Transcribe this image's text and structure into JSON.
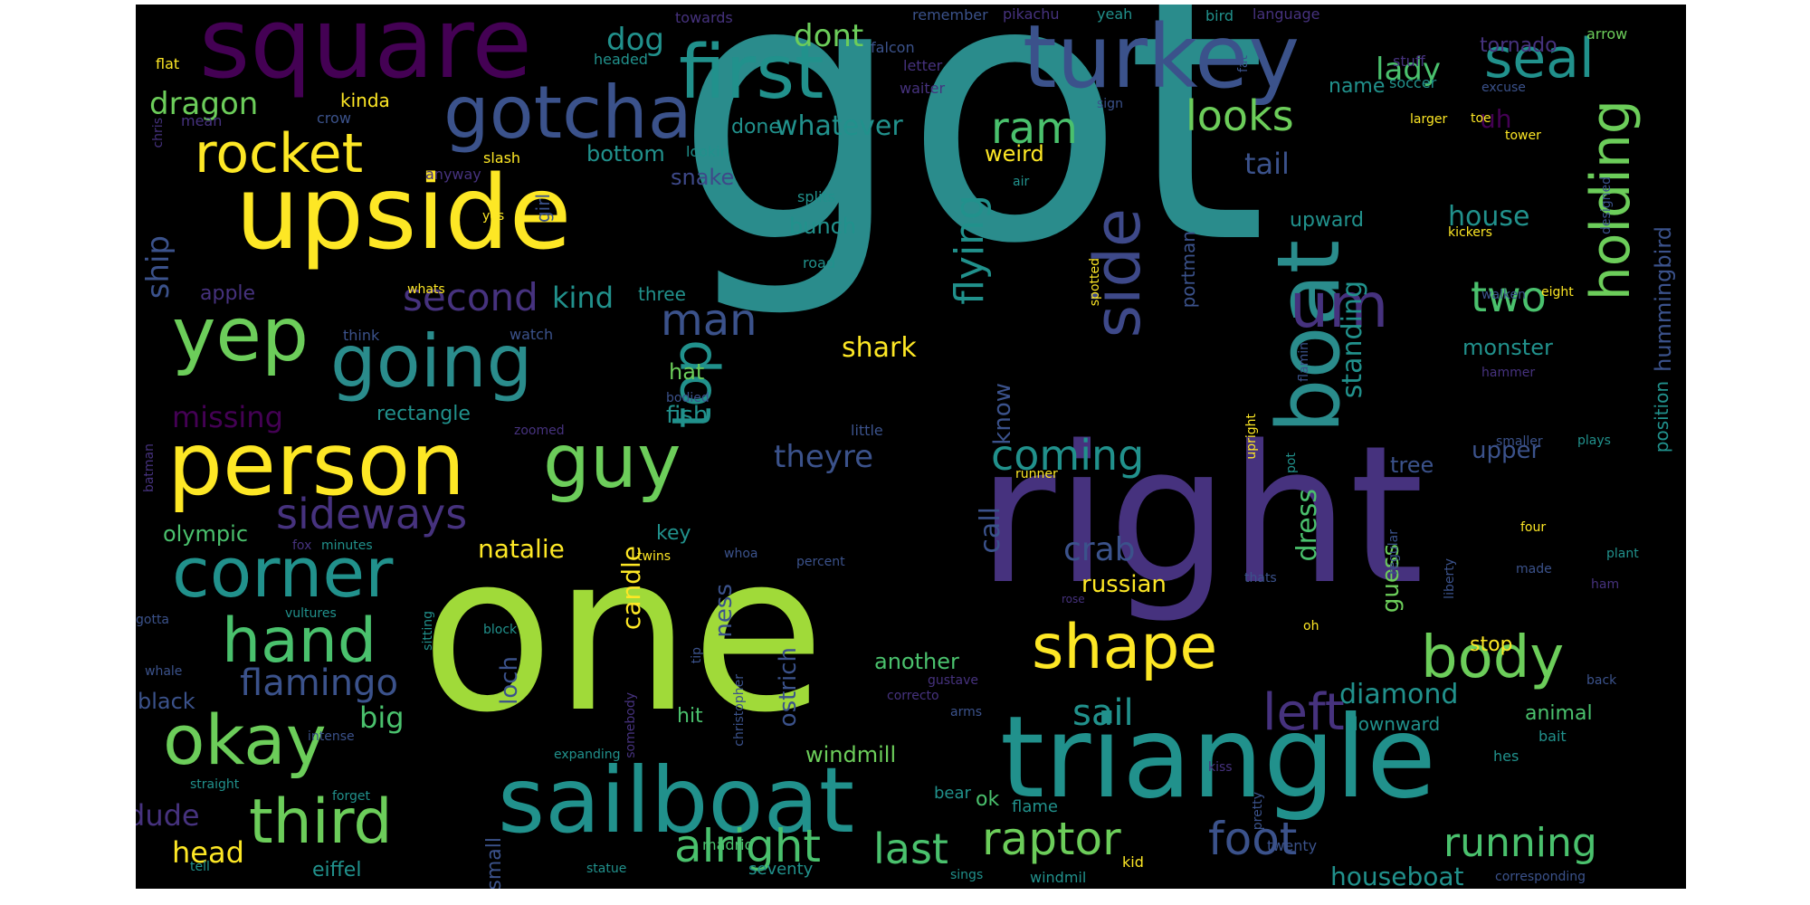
{
  "palette": {
    "c1": "#a0da39",
    "c2": "#2a8c8c",
    "c3": "#3b528b",
    "c4": "#46327e",
    "c5": "#fde725",
    "c6": "#4ac16d",
    "c7": "#21918c",
    "c8": "#3e4989",
    "c9": "#440154",
    "c10": "#6ccd5a"
  },
  "words": [
    {
      "text": "got"
    },
    {
      "text": "one"
    },
    {
      "text": "right"
    },
    {
      "text": "triangle"
    },
    {
      "text": "sailboat"
    },
    {
      "text": "upside"
    },
    {
      "text": "square"
    },
    {
      "text": "turkey"
    },
    {
      "text": "boat"
    },
    {
      "text": "person"
    },
    {
      "text": "first"
    },
    {
      "text": "gotcha"
    },
    {
      "text": "yep"
    },
    {
      "text": "going"
    },
    {
      "text": "guy"
    },
    {
      "text": "rocket"
    },
    {
      "text": "corner"
    },
    {
      "text": "okay"
    },
    {
      "text": "hand"
    },
    {
      "text": "third"
    },
    {
      "text": "shape"
    },
    {
      "text": "side"
    },
    {
      "text": "um"
    },
    {
      "text": "holding"
    },
    {
      "text": "seal"
    },
    {
      "text": "body"
    },
    {
      "text": "top"
    },
    {
      "text": "looks"
    },
    {
      "text": "man"
    },
    {
      "text": "sideways"
    },
    {
      "text": "flying"
    },
    {
      "text": "left"
    },
    {
      "text": "coming"
    },
    {
      "text": "two"
    },
    {
      "text": "ram"
    },
    {
      "text": "raptor"
    },
    {
      "text": "foot"
    },
    {
      "text": "alright"
    },
    {
      "text": "last"
    },
    {
      "text": "running"
    },
    {
      "text": "second"
    },
    {
      "text": "flamingo"
    },
    {
      "text": "sail"
    },
    {
      "text": "dragon"
    },
    {
      "text": "dog"
    },
    {
      "text": "dont"
    },
    {
      "text": "lady"
    },
    {
      "text": "ship"
    },
    {
      "text": "missing"
    },
    {
      "text": "whatever"
    },
    {
      "text": "theyre"
    },
    {
      "text": "crab"
    },
    {
      "text": "dress"
    },
    {
      "text": "house"
    },
    {
      "text": "standing"
    },
    {
      "text": "tail"
    },
    {
      "text": "shark"
    },
    {
      "text": "kind"
    },
    {
      "text": "call"
    },
    {
      "text": "know"
    },
    {
      "text": "big"
    },
    {
      "text": "dude"
    },
    {
      "text": "head"
    },
    {
      "text": "candle"
    },
    {
      "text": "diamond"
    },
    {
      "text": "houseboat"
    },
    {
      "text": "monster"
    },
    {
      "text": "natalie"
    },
    {
      "text": "russian"
    },
    {
      "text": "guess"
    },
    {
      "text": "windmill"
    },
    {
      "text": "another"
    },
    {
      "text": "loch"
    },
    {
      "text": "ness"
    },
    {
      "text": "ostrich"
    },
    {
      "text": "name"
    },
    {
      "text": "uh"
    },
    {
      "text": "hummingbird"
    },
    {
      "text": "position"
    },
    {
      "text": "upper"
    },
    {
      "text": "tree"
    },
    {
      "text": "fish"
    },
    {
      "text": "hat"
    },
    {
      "text": "bunch"
    },
    {
      "text": "snake"
    },
    {
      "text": "weird"
    },
    {
      "text": "bottom"
    },
    {
      "text": "kinda"
    },
    {
      "text": "done"
    },
    {
      "text": "rectangle"
    },
    {
      "text": "apple"
    },
    {
      "text": "olympic"
    },
    {
      "text": "black"
    },
    {
      "text": "eiffel"
    },
    {
      "text": "downward"
    },
    {
      "text": "animal"
    },
    {
      "text": "stop"
    },
    {
      "text": "upward"
    },
    {
      "text": "tornado"
    },
    {
      "text": "key"
    },
    {
      "text": "ok"
    },
    {
      "text": "hit"
    },
    {
      "text": "three"
    },
    {
      "text": "girl"
    },
    {
      "text": "small"
    },
    {
      "text": "portman"
    },
    {
      "text": "seventy"
    },
    {
      "text": "madrid"
    },
    {
      "text": "twenty"
    },
    {
      "text": "bear"
    },
    {
      "text": "flame"
    },
    {
      "text": "hes"
    },
    {
      "text": "bait"
    },
    {
      "text": "towards"
    },
    {
      "text": "remember"
    },
    {
      "text": "pikachu"
    },
    {
      "text": "yeah"
    },
    {
      "text": "bird"
    },
    {
      "text": "language"
    },
    {
      "text": "arrow"
    },
    {
      "text": "flat"
    },
    {
      "text": "headed"
    },
    {
      "text": "falcon"
    },
    {
      "text": "letter"
    },
    {
      "text": "fat"
    },
    {
      "text": "stuff"
    },
    {
      "text": "soccer"
    },
    {
      "text": "excuse"
    },
    {
      "text": "waiter"
    },
    {
      "text": "mean"
    },
    {
      "text": "crow"
    },
    {
      "text": "chris"
    },
    {
      "text": "sign"
    },
    {
      "text": "larger"
    },
    {
      "text": "toe"
    },
    {
      "text": "tower"
    },
    {
      "text": "slash"
    },
    {
      "text": "lookin"
    },
    {
      "text": "anyway"
    },
    {
      "text": "designed"
    },
    {
      "text": "air"
    },
    {
      "text": "splits"
    },
    {
      "text": "kickers"
    },
    {
      "text": "road"
    },
    {
      "text": "yes"
    },
    {
      "text": "spotted"
    },
    {
      "text": "whats"
    },
    {
      "text": "walken"
    },
    {
      "text": "eight"
    },
    {
      "text": "think"
    },
    {
      "text": "watch"
    },
    {
      "text": "flamin"
    },
    {
      "text": "hammer"
    },
    {
      "text": "bodied"
    },
    {
      "text": "zoomed"
    },
    {
      "text": "little"
    },
    {
      "text": "upright"
    },
    {
      "text": "smaller"
    },
    {
      "text": "plays"
    },
    {
      "text": "batman"
    },
    {
      "text": "runner"
    },
    {
      "text": "pot"
    },
    {
      "text": "fox"
    },
    {
      "text": "minutes"
    },
    {
      "text": "twins"
    },
    {
      "text": "whoa"
    },
    {
      "text": "percent"
    },
    {
      "text": "regular"
    },
    {
      "text": "liberty"
    },
    {
      "text": "four"
    },
    {
      "text": "plant"
    },
    {
      "text": "made"
    },
    {
      "text": "thats"
    },
    {
      "text": "ham"
    },
    {
      "text": "rose"
    },
    {
      "text": "vultures"
    },
    {
      "text": "gotta"
    },
    {
      "text": "sitting"
    },
    {
      "text": "block"
    },
    {
      "text": "oh"
    },
    {
      "text": "whale"
    },
    {
      "text": "tip"
    },
    {
      "text": "christopher"
    },
    {
      "text": "back"
    },
    {
      "text": "gustave"
    },
    {
      "text": "correcto"
    },
    {
      "text": "arms"
    },
    {
      "text": "intense"
    },
    {
      "text": "expanding"
    },
    {
      "text": "somebody"
    },
    {
      "text": "straight"
    },
    {
      "text": "forget"
    },
    {
      "text": "kiss"
    },
    {
      "text": "pretty"
    },
    {
      "text": "tell"
    },
    {
      "text": "statue"
    },
    {
      "text": "sings"
    },
    {
      "text": "windmil"
    },
    {
      "text": "kid"
    },
    {
      "text": "corresponding"
    }
  ]
}
